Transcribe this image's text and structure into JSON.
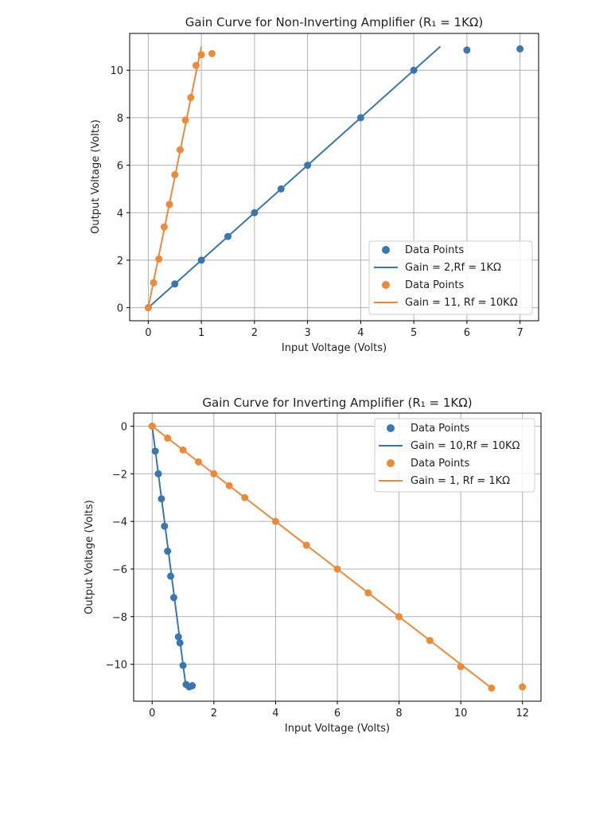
{
  "colors": {
    "blue": "#3a76b0",
    "orange": "#ec8a3c"
  },
  "chart_data": [
    {
      "type": "scatter",
      "title": "Gain Curve for Non-Inverting Amplifier (R₁ = 1KΩ)",
      "xlabel": "Input Voltage (Volts)",
      "ylabel": "Output Voltage (Volts)",
      "xlim": [
        -0.35,
        7.35
      ],
      "ylim": [
        -0.55,
        11.55
      ],
      "xticks": [
        0,
        1,
        2,
        3,
        4,
        5,
        6,
        7
      ],
      "yticks": [
        0,
        2,
        4,
        6,
        8,
        10
      ],
      "grid": true,
      "legend_position": "lower right",
      "series": [
        {
          "name": "Data Points",
          "kind": "points",
          "color": "#3a76b0",
          "x": [
            0,
            0.5,
            1,
            1.5,
            2,
            2.5,
            3,
            4,
            5,
            6,
            7
          ],
          "y": [
            0,
            1,
            2,
            3,
            4,
            5,
            6,
            8,
            10,
            10.85,
            10.9
          ]
        },
        {
          "name": "Gain = 2,Rf = 1KΩ",
          "kind": "line",
          "color": "#3a76b0",
          "x": [
            0,
            5.5
          ],
          "y": [
            0,
            11
          ]
        },
        {
          "name": "Data Points",
          "kind": "points",
          "color": "#ec8a3c",
          "x": [
            0,
            0.1,
            0.2,
            0.3,
            0.4,
            0.5,
            0.6,
            0.7,
            0.8,
            0.9,
            1.0,
            1.2
          ],
          "y": [
            0,
            1.05,
            2.05,
            3.4,
            4.35,
            5.6,
            6.65,
            7.9,
            8.85,
            10.2,
            10.65,
            10.7
          ]
        },
        {
          "name": "Gain = 11, Rf = 10KΩ",
          "kind": "line",
          "color": "#ec8a3c",
          "x": [
            0,
            1
          ],
          "y": [
            0,
            11
          ]
        }
      ]
    },
    {
      "type": "scatter",
      "title": "Gain Curve for Inverting Amplifier (R₁ = 1KΩ)",
      "xlabel": "Input Voltage (Volts)",
      "ylabel": "Output Voltage (Volts)",
      "xlim": [
        -0.6,
        12.6
      ],
      "ylim": [
        -11.55,
        0.55
      ],
      "xticks": [
        0,
        2,
        4,
        6,
        8,
        10,
        12
      ],
      "yticks": [
        0,
        -2,
        -4,
        -6,
        -8,
        -10
      ],
      "grid": true,
      "legend_position": "upper right",
      "series": [
        {
          "name": "Data Points",
          "kind": "points",
          "color": "#3a76b0",
          "x": [
            0,
            0.1,
            0.2,
            0.3,
            0.4,
            0.5,
            0.6,
            0.7,
            0.85,
            0.9,
            1.0,
            1.1,
            1.2,
            1.3
          ],
          "y": [
            0,
            -1.05,
            -2.0,
            -3.05,
            -4.2,
            -5.25,
            -6.3,
            -7.2,
            -8.85,
            -9.1,
            -10.05,
            -10.85,
            -10.95,
            -10.9
          ]
        },
        {
          "name": "Gain = 10,Rf = 10KΩ",
          "kind": "line",
          "color": "#3a76b0",
          "x": [
            0,
            1.1
          ],
          "y": [
            0,
            -11
          ]
        },
        {
          "name": "Data Points",
          "kind": "points",
          "color": "#ec8a3c",
          "x": [
            0,
            0.5,
            1,
            1.5,
            2,
            2.5,
            3,
            4,
            5,
            6,
            7,
            8,
            9,
            10,
            11,
            12
          ],
          "y": [
            0,
            -0.5,
            -1,
            -1.5,
            -2,
            -2.5,
            -3,
            -4,
            -5,
            -6,
            -7,
            -8,
            -9,
            -10.1,
            -11,
            -10.95
          ]
        },
        {
          "name": "Gain = 1, Rf = 1KΩ",
          "kind": "line",
          "color": "#ec8a3c",
          "x": [
            0,
            11
          ],
          "y": [
            0,
            -11
          ]
        }
      ]
    }
  ]
}
